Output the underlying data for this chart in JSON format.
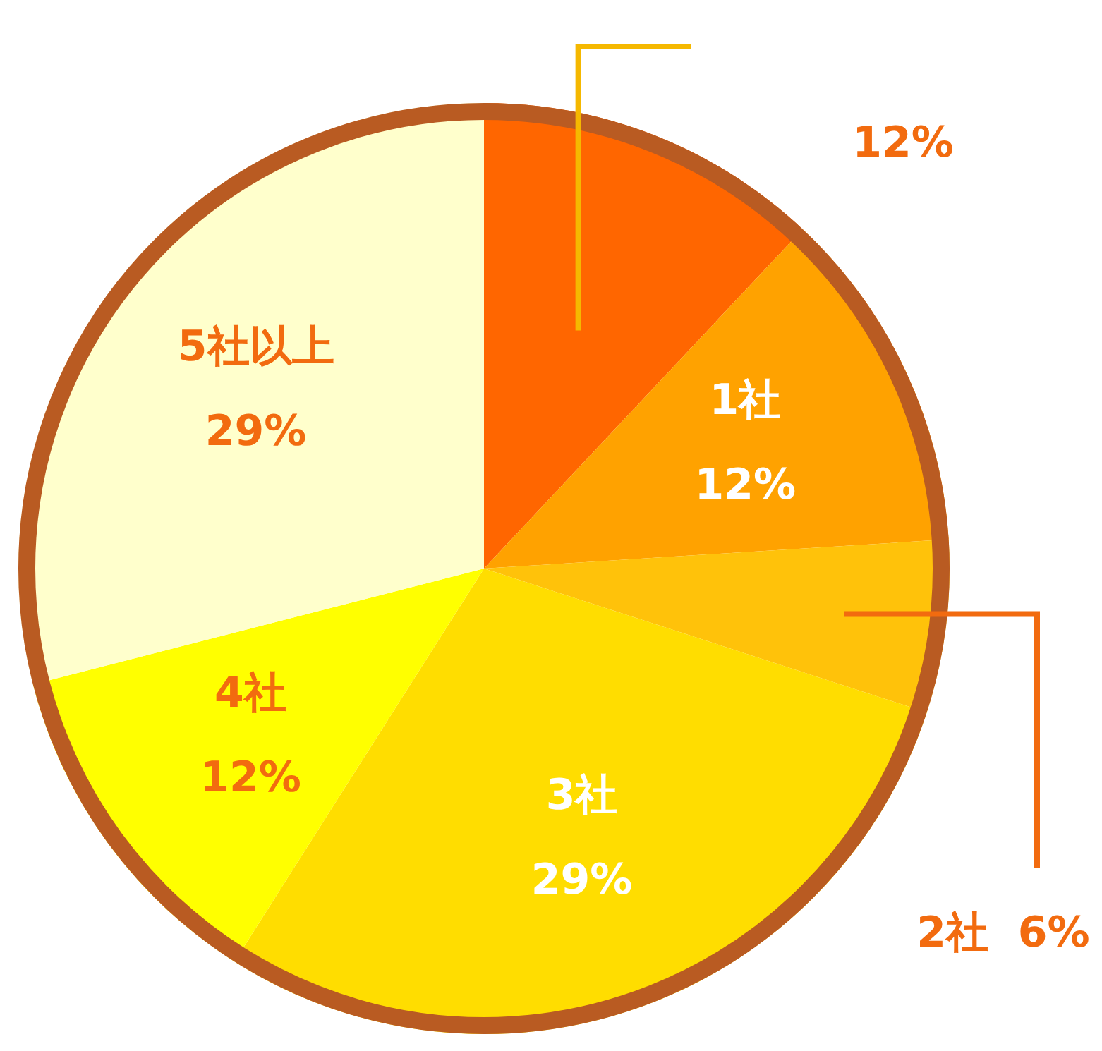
{
  "chart_data": {
    "type": "pie",
    "categories": [
      null,
      "1社",
      "2社",
      "3社",
      "4社",
      "5社以上"
    ],
    "values": [
      12,
      12,
      6,
      29,
      12,
      29
    ],
    "colors": [
      "#ff6600",
      "#ffa200",
      "#ffc20a",
      "#ffdd00",
      "#ffff00",
      "#ffffcc"
    ],
    "value_labels": [
      "12%",
      "12%",
      "6%",
      "29%",
      "12%",
      "29%"
    ],
    "legend": false
  }
}
